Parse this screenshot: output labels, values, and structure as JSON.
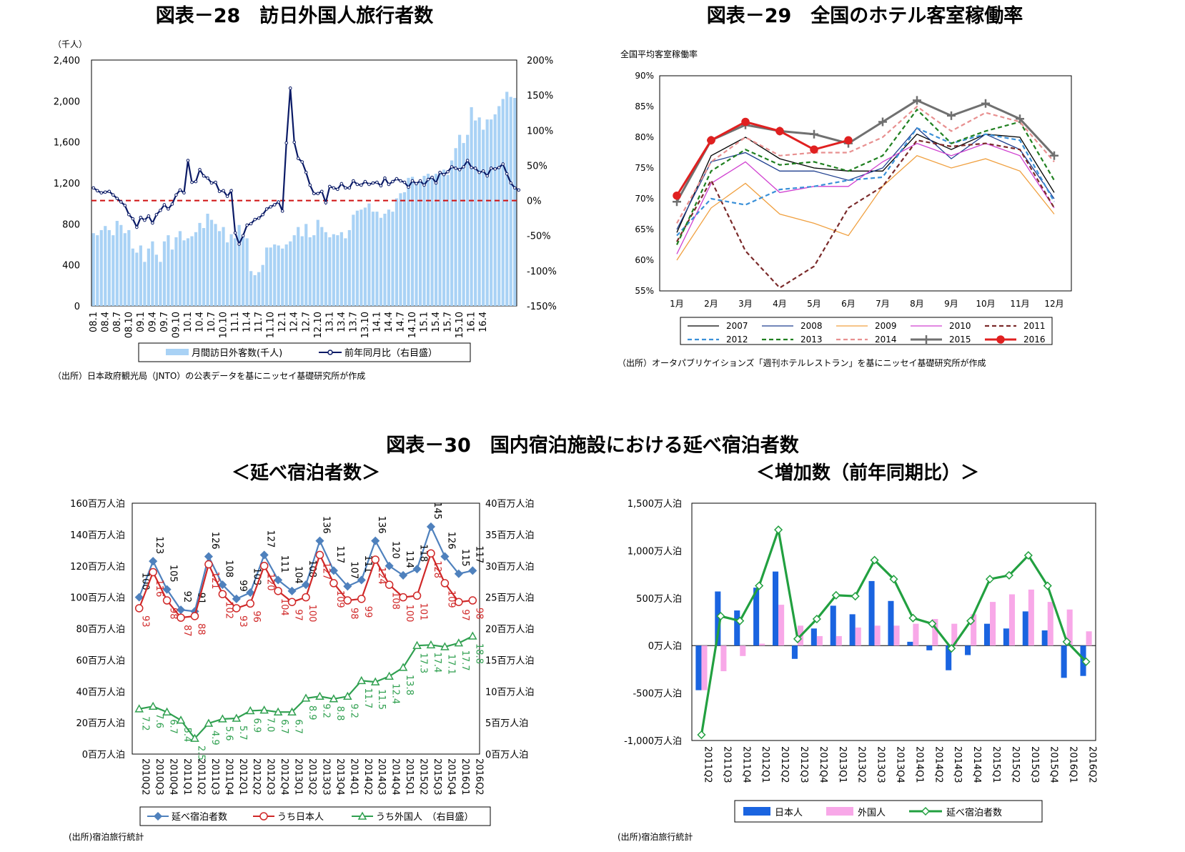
{
  "chart_data": [
    {
      "id": "c28",
      "type": "bar+line",
      "title": "図表－28　訪日外国人旅行者数",
      "unit_label": "（千人）",
      "left_ylim": [
        0,
        2400
      ],
      "left_ticks": [
        "0",
        "400",
        "800",
        "1,200",
        "1,600",
        "2,000",
        "2,400"
      ],
      "right_ylim": [
        -150,
        200
      ],
      "right_ticks": [
        "-150%",
        "-100%",
        "-50%",
        "0%",
        "50%",
        "100%",
        "150%",
        "200%"
      ],
      "x_tick_labels": [
        "08.1",
        "08.4",
        "08.7",
        "08.10",
        "09.1",
        "09.4",
        "09.7",
        "09.10",
        "10.1",
        "10.4",
        "10.7",
        "10.10",
        "11.1",
        "11.4",
        "11.7",
        "11.10",
        "12.1",
        "12.4",
        "12.7",
        "12.10",
        "13.1",
        "13.4",
        "13.7",
        "13.10",
        "14.1",
        "14.4",
        "14.7",
        "14.10",
        "15.1",
        "15.4",
        "15.7",
        "15.10",
        "16.1",
        "16.4"
      ],
      "series": [
        {
          "name": "月間訪日外客数(千人)",
          "kind": "bar",
          "color": "#a9d2f5",
          "values": [
            710,
            690,
            740,
            780,
            740,
            690,
            830,
            790,
            710,
            740,
            560,
            520,
            590,
            430,
            560,
            630,
            500,
            430,
            630,
            690,
            550,
            670,
            730,
            640,
            660,
            680,
            720,
            810,
            760,
            900,
            840,
            800,
            730,
            770,
            620,
            700,
            660,
            790,
            690,
            660,
            340,
            300,
            330,
            400,
            570,
            570,
            600,
            590,
            560,
            600,
            630,
            690,
            770,
            680,
            800,
            670,
            690,
            840,
            770,
            720,
            670,
            700,
            690,
            720,
            660,
            740,
            890,
            930,
            940,
            960,
            1000,
            920,
            920,
            860,
            900,
            940,
            920,
            1050,
            1100,
            1110,
            1250,
            1260,
            1200,
            1210,
            1270,
            1290,
            1270,
            1290,
            1310,
            1330,
            1280,
            1420,
            1540,
            1670,
            1590,
            1670,
            1940,
            1810,
            1840,
            1720,
            1820,
            1820,
            1870,
            1950,
            2020,
            2090,
            2040,
            2030
          ]
        },
        {
          "name": "前年同月比（右目盛）",
          "kind": "line",
          "color": "#0a1a66",
          "values": [
            18,
            14,
            11,
            12,
            13,
            8,
            3,
            -2,
            -7,
            -20,
            -26,
            -38,
            -24,
            -28,
            -22,
            -32,
            -20,
            -14,
            -6,
            -12,
            -5,
            8,
            15,
            11,
            57,
            26,
            27,
            44,
            35,
            32,
            25,
            26,
            13,
            14,
            6,
            14,
            -46,
            -62,
            -50,
            -35,
            -33,
            -27,
            -25,
            -20,
            -12,
            -9,
            -6,
            -2,
            -15,
            82,
            160,
            83,
            60,
            55,
            40,
            22,
            10,
            10,
            13,
            -3,
            20,
            18,
            16,
            24,
            18,
            18,
            28,
            23,
            22,
            27,
            23,
            25,
            26,
            21,
            32,
            23,
            27,
            31,
            28,
            26,
            19,
            28,
            24,
            28,
            22,
            30,
            33,
            25,
            40,
            37,
            41,
            48,
            46,
            44,
            48,
            57,
            47,
            46,
            40,
            42,
            35,
            46,
            45,
            47,
            52,
            38,
            25,
            18,
            15
          ]
        }
      ],
      "legend": [
        "月間訪日外客数(千人)",
        "前年同月比（右目盛）"
      ],
      "source": "（出所）日本政府観光局（JNTO）の公表データを基にニッセイ基礎研究所が作成"
    },
    {
      "id": "c29",
      "type": "line",
      "title": "図表－29　全国のホテル客室稼働率",
      "ylabel": "全国平均客室稼働率",
      "ylim": [
        55,
        90
      ],
      "y_ticks": [
        "55%",
        "60%",
        "65%",
        "70%",
        "75%",
        "80%",
        "85%",
        "90%"
      ],
      "categories": [
        "1月",
        "2月",
        "3月",
        "4月",
        "5月",
        "6月",
        "7月",
        "8月",
        "9月",
        "10月",
        "11月",
        "12月"
      ],
      "series": [
        {
          "name": "2007",
          "color": "#000000",
          "dash": "",
          "values": [
            64.5,
            77.0,
            80.0,
            76.5,
            75.0,
            74.5,
            74.5,
            80.5,
            78.0,
            80.5,
            80.0,
            71.0
          ]
        },
        {
          "name": "2008",
          "color": "#1f3f8f",
          "dash": "",
          "values": [
            65.0,
            76.0,
            77.5,
            74.5,
            74.5,
            73.0,
            75.0,
            81.5,
            76.5,
            80.5,
            78.0,
            70.0
          ]
        },
        {
          "name": "2009",
          "color": "#f0a040",
          "dash": "",
          "values": [
            60.0,
            68.5,
            72.5,
            67.5,
            66.0,
            64.0,
            72.0,
            77.0,
            75.0,
            76.5,
            74.5,
            67.5
          ]
        },
        {
          "name": "2010",
          "color": "#d040d0",
          "dash": "",
          "values": [
            61.0,
            72.5,
            76.0,
            71.0,
            72.0,
            72.0,
            76.0,
            79.0,
            77.0,
            79.0,
            77.0,
            68.5
          ]
        },
        {
          "name": "2011",
          "color": "#7a2a2a",
          "dash": "6,4",
          "values": [
            63.0,
            73.0,
            61.5,
            55.5,
            59.0,
            68.5,
            72.0,
            79.5,
            78.5,
            79.0,
            78.0,
            68.5
          ]
        },
        {
          "name": "2012",
          "color": "#3a90d8",
          "dash": "6,4",
          "values": [
            64.0,
            70.0,
            69.0,
            71.5,
            72.0,
            73.0,
            73.5,
            81.5,
            79.0,
            80.5,
            79.5,
            69.5
          ]
        },
        {
          "name": "2013",
          "color": "#208020",
          "dash": "6,4",
          "values": [
            62.5,
            74.5,
            78.0,
            75.5,
            76.0,
            74.5,
            77.0,
            84.5,
            79.0,
            81.0,
            82.5,
            73.0
          ]
        },
        {
          "name": "2014",
          "color": "#e89090",
          "dash": "6,4",
          "values": [
            66.0,
            76.0,
            80.0,
            77.0,
            77.5,
            77.5,
            80.0,
            85.0,
            81.0,
            84.0,
            82.5,
            76.0
          ]
        },
        {
          "name": "2015",
          "color": "#707070",
          "dash": "",
          "values": [
            69.5,
            79.5,
            82.0,
            81.0,
            80.5,
            79.0,
            82.5,
            86.0,
            83.5,
            85.5,
            83.0,
            77.0
          ]
        },
        {
          "name": "2016",
          "color": "#e02020",
          "dash": "",
          "values": [
            70.5,
            79.5,
            82.5,
            81.0,
            78.0,
            79.5,
            null,
            null,
            null,
            null,
            null,
            null
          ]
        }
      ],
      "source": "（出所）オータパブリケイションズ「週刊ホテルレストラン」を基にニッセイ基礎研究所が作成"
    },
    {
      "id": "c30a",
      "type": "line",
      "main_title": "図表－30　国内宿泊施設における延べ宿泊者数",
      "title": "＜延べ宿泊者数＞",
      "left_ylim": [
        0,
        160
      ],
      "left_ticks": [
        "0百万人泊",
        "20百万人泊",
        "40百万人泊",
        "60百万人泊",
        "80百万人泊",
        "100百万人泊",
        "120百万人泊",
        "140百万人泊",
        "160百万人泊"
      ],
      "right_ylim": [
        0,
        40
      ],
      "right_ticks": [
        "0百万人泊",
        "5百万人泊",
        "10百万人泊",
        "15百万人泊",
        "20百万人泊",
        "25百万人泊",
        "30百万人泊",
        "35百万人泊",
        "40百万人泊"
      ],
      "categories": [
        "2010Q2",
        "2010Q3",
        "2010Q4",
        "2011Q1",
        "2011Q2",
        "2011Q3",
        "2011Q4",
        "2012Q1",
        "2012Q2",
        "2012Q3",
        "2012Q4",
        "2013Q1",
        "2013Q2",
        "2013Q3",
        "2013Q4",
        "2014Q1",
        "2014Q2",
        "2014Q3",
        "2014Q4",
        "2015Q1",
        "2015Q2",
        "2015Q3",
        "2015Q4",
        "2016Q1",
        "2016Q2"
      ],
      "series": [
        {
          "name": "延べ宿泊者数",
          "color": "#4f81bd",
          "axis": "left",
          "marker": "diamond",
          "values": [
            100,
            123,
            105,
            92,
            91,
            126,
            108,
            99,
            103,
            127,
            111,
            104,
            108,
            136,
            117,
            107,
            111,
            136,
            120,
            114,
            118,
            145,
            126,
            115,
            117
          ],
          "labels": [
            "100",
            "123",
            "105",
            "92",
            "91",
            "126",
            "108",
            "99",
            "103",
            "127",
            "111",
            "104",
            "108",
            "136",
            "117",
            "107",
            "111",
            "136",
            "120",
            "114",
            "118",
            "145",
            "126",
            "115",
            "117"
          ]
        },
        {
          "name": "うち日本人",
          "color": "#d02828",
          "axis": "left",
          "marker": "circle",
          "values": [
            93,
            116,
            98,
            87,
            88,
            121,
            102,
            93,
            96,
            120,
            104,
            97,
            100,
            127,
            109,
            98,
            99,
            124,
            108,
            100,
            101,
            128,
            109,
            97,
            98
          ],
          "labels": [
            "93",
            "116",
            "98",
            "87",
            "88",
            "121",
            "102",
            "93",
            "96",
            "120",
            "104",
            "97",
            "100",
            "127",
            "109",
            "98",
            "99",
            "124",
            "108",
            "100",
            "101",
            "128",
            "109",
            "97",
            "98"
          ]
        },
        {
          "name": "うち外国人　（右目盛）",
          "color": "#30a050",
          "axis": "right",
          "marker": "triangle",
          "values": [
            7.2,
            7.6,
            6.7,
            5.4,
            2.5,
            4.9,
            5.6,
            5.7,
            6.9,
            7.0,
            6.7,
            6.7,
            8.9,
            9.2,
            8.8,
            9.2,
            11.7,
            11.5,
            12.4,
            13.8,
            17.3,
            17.4,
            17.1,
            17.7,
            18.8
          ],
          "labels": [
            "7.2",
            "7.6",
            "6.7",
            "5.4",
            "2.5",
            "4.9",
            "5.6",
            "5.7",
            "6.9",
            "7.0",
            "6.7",
            "6.7",
            "8.9",
            "9.2",
            "8.8",
            "9.2",
            "11.7",
            "11.5",
            "12.4",
            "13.8",
            "17.3",
            "17.4",
            "17.1",
            "17.7",
            "18.8"
          ]
        }
      ],
      "source": "(出所)宿泊旅行統計"
    },
    {
      "id": "c30b",
      "type": "bar+line",
      "title": "＜増加数（前年同期比）＞",
      "ylim": [
        -1000,
        1500
      ],
      "y_ticks": [
        "-1,000万人泊",
        "-500万人泊",
        "0万人泊",
        "500万人泊",
        "1,000万人泊",
        "1,500万人泊"
      ],
      "categories": [
        "2011Q2",
        "2011Q3",
        "2011Q4",
        "2012Q1",
        "2012Q2",
        "2012Q3",
        "2012Q4",
        "2013Q1",
        "2013Q2",
        "2013Q3",
        "2013Q4",
        "2014Q1",
        "2014Q2",
        "2014Q3",
        "2014Q4",
        "2015Q1",
        "2015Q2",
        "2015Q3",
        "2015Q4",
        "2016Q1",
        "2016Q2"
      ],
      "series": [
        {
          "name": "日本人",
          "kind": "bar",
          "color": "#1a64e0",
          "values": [
            -470,
            570,
            370,
            610,
            780,
            -140,
            180,
            420,
            330,
            680,
            470,
            40,
            -50,
            -260,
            -100,
            230,
            180,
            360,
            160,
            -340,
            -320
          ]
        },
        {
          "name": "外国人",
          "kind": "bar",
          "color": "#f8a8e8",
          "values": [
            -470,
            -270,
            -110,
            20,
            430,
            210,
            100,
            100,
            190,
            210,
            210,
            230,
            280,
            230,
            330,
            460,
            540,
            590,
            460,
            380,
            150
          ]
        },
        {
          "name": "延べ宿泊者数",
          "kind": "line",
          "color": "#22a040",
          "values": [
            -940,
            310,
            260,
            630,
            1220,
            70,
            280,
            530,
            520,
            900,
            700,
            290,
            230,
            -30,
            260,
            700,
            740,
            950,
            630,
            40,
            -170
          ]
        }
      ],
      "source": "(出所)宿泊旅行統計"
    }
  ]
}
